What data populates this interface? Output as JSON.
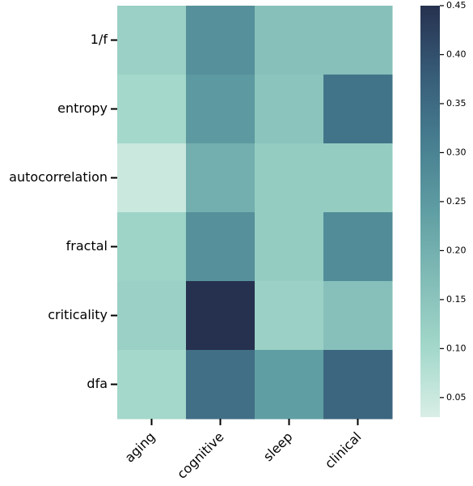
{
  "chart_data": {
    "type": "heatmap",
    "rows": [
      "1/f",
      "entropy",
      "autocorrelation",
      "fractal",
      "criticality",
      "dfa"
    ],
    "columns": [
      "aging",
      "cognitive",
      "sleep",
      "clinical"
    ],
    "values": [
      [
        0.12,
        0.27,
        0.16,
        0.16
      ],
      [
        0.1,
        0.25,
        0.15,
        0.33
      ],
      [
        0.05,
        0.2,
        0.13,
        0.13
      ],
      [
        0.11,
        0.27,
        0.13,
        0.28
      ],
      [
        0.12,
        0.45,
        0.12,
        0.16
      ],
      [
        0.1,
        0.34,
        0.24,
        0.36
      ]
    ],
    "colorbar": {
      "min": 0.03,
      "max": 0.45,
      "ticks": [
        0.05,
        0.1,
        0.15,
        0.2,
        0.25,
        0.3,
        0.35,
        0.4,
        0.45
      ],
      "tick_labels": [
        "0.05",
        "0.10",
        "0.15",
        "0.20",
        "0.25",
        "0.30",
        "0.35",
        "0.40",
        "0.45"
      ],
      "colors": [
        "#d9eee6",
        "#a3d8ca",
        "#82bcb7",
        "#5f9ea3",
        "#477e90",
        "#375c78",
        "#26314f"
      ]
    },
    "title": "",
    "xlabel": "",
    "ylabel": ""
  }
}
